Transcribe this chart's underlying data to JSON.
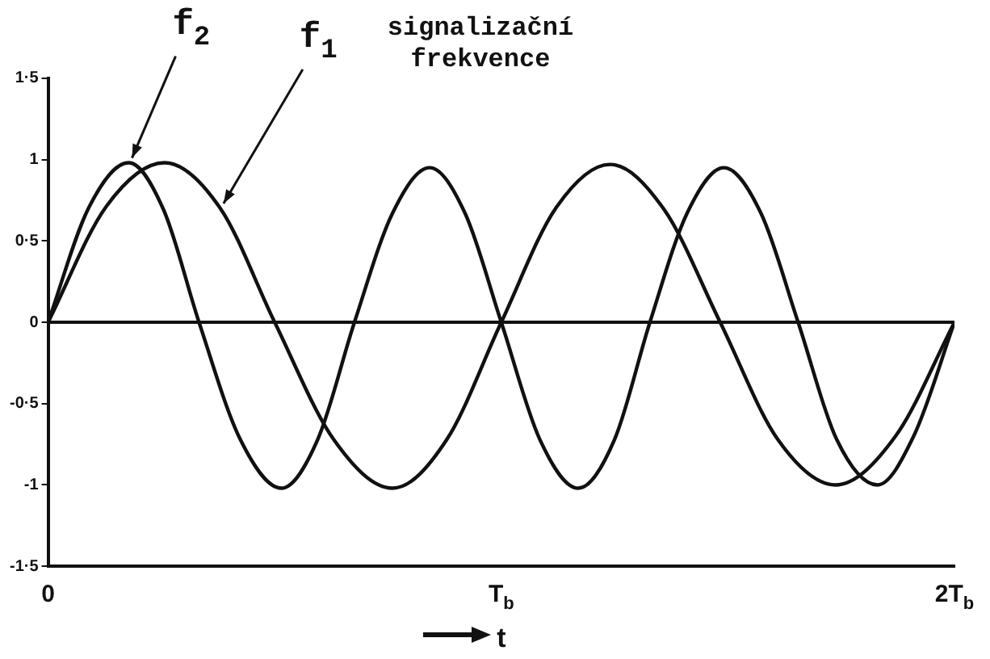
{
  "chart_data": {
    "type": "line",
    "title": "signalizační frekvence",
    "xlabel": "t",
    "xlim": [
      0,
      2
    ],
    "xticks": [
      0,
      {
        "value": 1,
        "label": "T$_{b}$"
      },
      {
        "value": 2,
        "label": "2T$_{b}$"
      }
    ],
    "ylim": [
      -1.5,
      1.5
    ],
    "yticks": [
      {
        "value": -1.5,
        "label": "-1·5"
      },
      -1,
      {
        "value": -0.5,
        "label": "-0·5"
      },
      0,
      {
        "value": 0.5,
        "label": "0·5"
      },
      1,
      {
        "value": 1.5,
        "label": "1·5"
      }
    ],
    "grid": false,
    "legend": false,
    "marker": "none",
    "line_style": "solid",
    "ref_lines": [
      {
        "axis": "y",
        "value": 0,
        "color": "#111111"
      }
    ],
    "series": [
      {
        "name": "f$_{1}$",
        "color": "#111111",
        "x": [
          0,
          0.128,
          0.257,
          0.38,
          0.5,
          0.63,
          0.76,
          0.88,
          1.0,
          1.12,
          1.24,
          1.36,
          1.483,
          1.61,
          1.737,
          1.87,
          2.0
        ],
        "values": [
          0,
          0.71,
          0.98,
          0.7,
          0,
          -0.72,
          -1.02,
          -0.72,
          0,
          0.7,
          0.97,
          0.69,
          0,
          -0.72,
          -1.0,
          -0.7,
          0
        ]
      },
      {
        "name": "f$_{2}$",
        "color": "#111111",
        "x": [
          0,
          0.089,
          0.178,
          0.255,
          0.333,
          0.424,
          0.515,
          0.595,
          0.676,
          0.76,
          0.842,
          0.92,
          1.0,
          1.085,
          1.17,
          1.25,
          1.328,
          1.41,
          1.491,
          1.573,
          1.655,
          1.74,
          1.83,
          1.91,
          2.0
        ],
        "values": [
          0,
          0.7,
          0.98,
          0.69,
          0,
          -0.72,
          -1.02,
          -0.72,
          0,
          0.67,
          0.95,
          0.67,
          0,
          -0.72,
          -1.02,
          -0.72,
          0,
          0.67,
          0.95,
          0.67,
          0,
          -0.72,
          -1.0,
          -0.7,
          0
        ]
      }
    ]
  }
}
